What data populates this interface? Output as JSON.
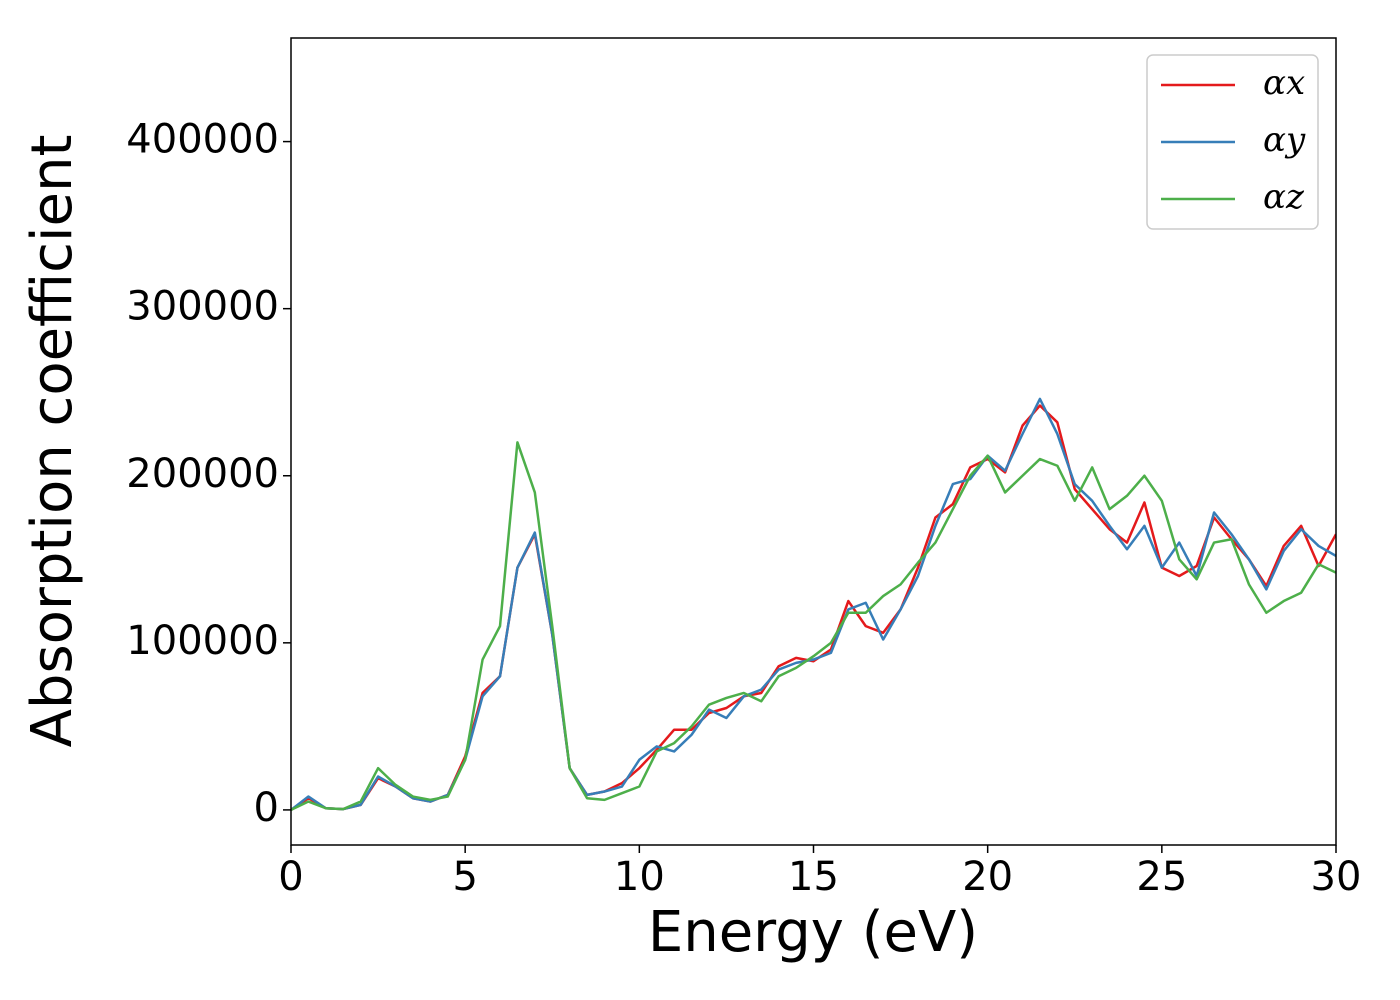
{
  "chart_data": {
    "type": "line",
    "xlabel": "Energy (eV)",
    "ylabel": "Absorption coefficient",
    "x": [
      0,
      0.5,
      1,
      1.5,
      2,
      2.5,
      3,
      3.5,
      4,
      4.5,
      5,
      5.5,
      6,
      6.5,
      7,
      7.5,
      8,
      8.5,
      9,
      9.5,
      10,
      10.5,
      11,
      11.5,
      12,
      12.5,
      13,
      13.5,
      14,
      14.5,
      15,
      15.5,
      16,
      16.5,
      17,
      17.5,
      18,
      18.5,
      19,
      19.5,
      20,
      20.5,
      21,
      21.5,
      22,
      22.5,
      23,
      23.5,
      24,
      24.5,
      25,
      25.5,
      26,
      26.5,
      27,
      27.5,
      28,
      28.5,
      29,
      29.5,
      30
    ],
    "series": [
      {
        "name": "αx",
        "color": "#e41a1c",
        "values": [
          0,
          7000,
          1000,
          500,
          3000,
          19000,
          14000,
          7000,
          5000,
          9000,
          32000,
          70000,
          80000,
          145000,
          165000,
          105000,
          25000,
          9000,
          11000,
          16000,
          25000,
          36000,
          48000,
          48000,
          58000,
          61000,
          68000,
          70000,
          86000,
          91000,
          89000,
          96000,
          125000,
          110000,
          106000,
          120000,
          145000,
          175000,
          183000,
          205000,
          210000,
          202000,
          230000,
          242000,
          232000,
          192000,
          180000,
          168000,
          160000,
          184000,
          145000,
          140000,
          146000,
          175000,
          162000,
          150000,
          134000,
          158000,
          170000,
          146000,
          165000
        ]
      },
      {
        "name": "αy",
        "color": "#377eb8",
        "values": [
          0,
          8000,
          1000,
          500,
          3000,
          20000,
          14000,
          7000,
          5000,
          9000,
          30000,
          68000,
          80000,
          145000,
          166000,
          105000,
          25000,
          9000,
          11000,
          14000,
          30000,
          38000,
          35000,
          45000,
          60000,
          55000,
          68000,
          72000,
          84000,
          88000,
          90000,
          94000,
          120000,
          124000,
          102000,
          120000,
          140000,
          170000,
          195000,
          198000,
          212000,
          203000,
          225000,
          246000,
          225000,
          195000,
          185000,
          170000,
          156000,
          170000,
          145000,
          160000,
          140000,
          178000,
          165000,
          150000,
          132000,
          155000,
          168000,
          158000,
          152000
        ]
      },
      {
        "name": "αz",
        "color": "#4daf4a",
        "values": [
          0,
          5000,
          1000,
          500,
          5000,
          25000,
          15000,
          8000,
          6000,
          8000,
          30000,
          90000,
          110000,
          220000,
          190000,
          110000,
          25000,
          7000,
          6000,
          10000,
          14000,
          35000,
          40000,
          50000,
          63000,
          67000,
          70000,
          65000,
          80000,
          85000,
          92000,
          100000,
          118000,
          118000,
          128000,
          135000,
          148000,
          160000,
          180000,
          200000,
          212000,
          190000,
          200000,
          210000,
          206000,
          185000,
          205000,
          180000,
          188000,
          200000,
          185000,
          150000,
          138000,
          160000,
          162000,
          135000,
          118000,
          125000,
          130000,
          147000,
          142000
        ]
      }
    ],
    "xlim": [
      0,
      30
    ],
    "xticks": [
      0,
      5,
      10,
      15,
      20,
      25,
      30
    ],
    "ylim": [
      -21000,
      462000
    ],
    "yticks": [
      0,
      100000,
      200000,
      300000,
      400000
    ],
    "grid": false,
    "legend": "upper right"
  }
}
